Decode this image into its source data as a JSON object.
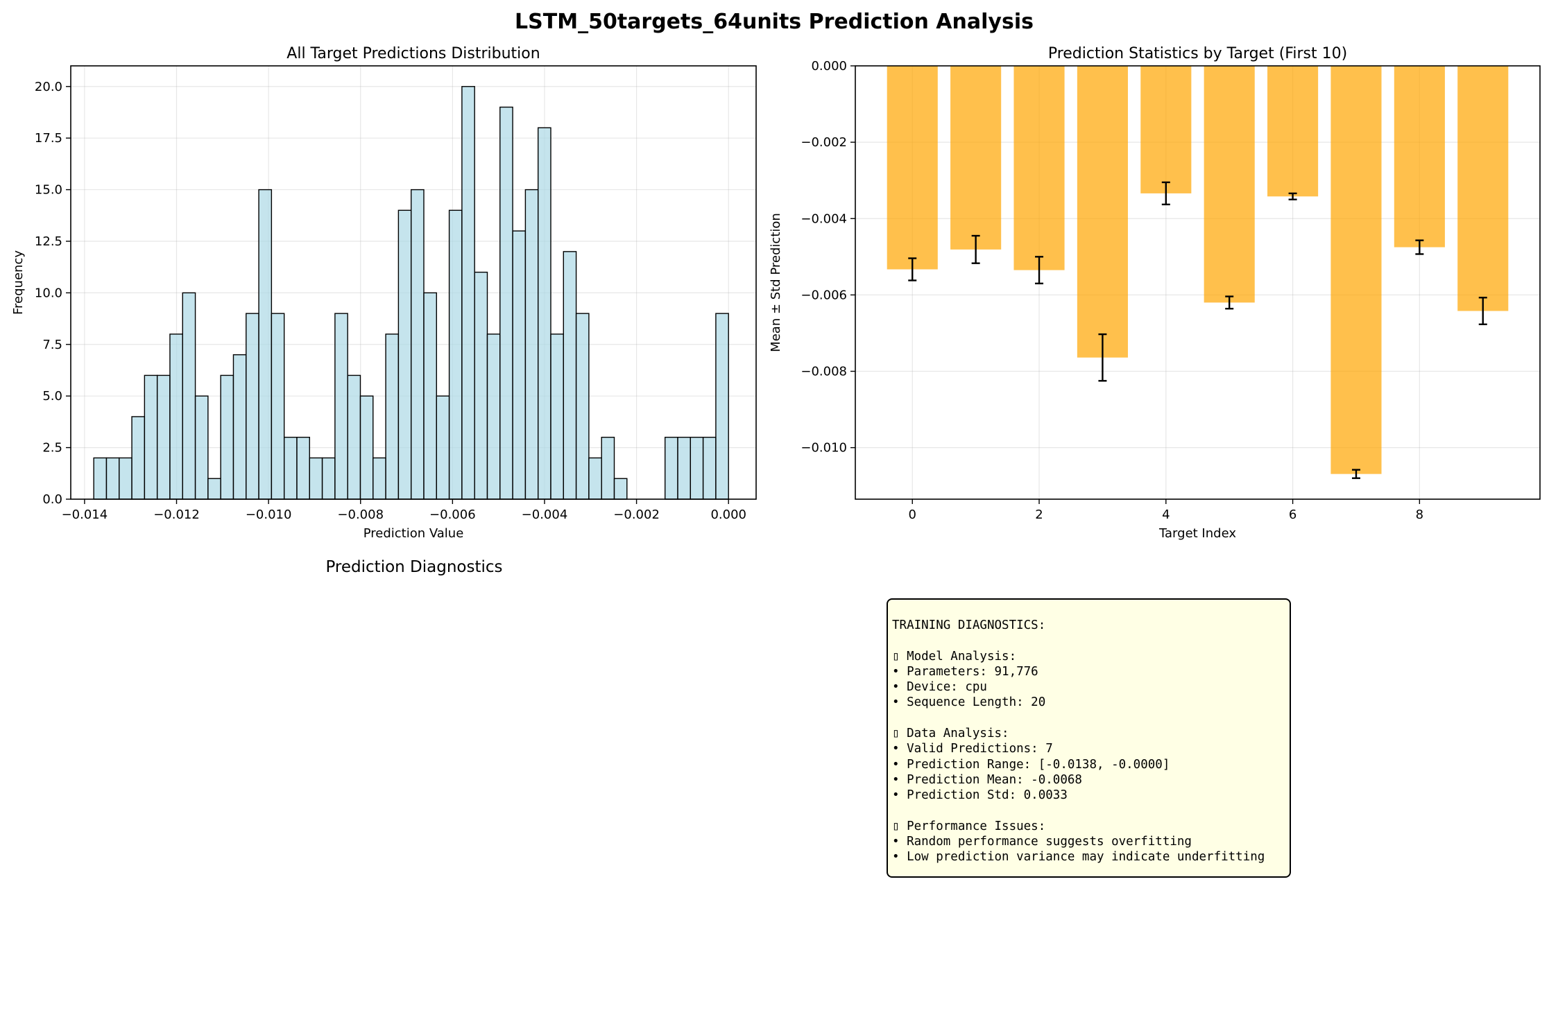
{
  "figure": {
    "title": "LSTM_50targets_64units Prediction Analysis",
    "diagnostics_panel_title": "Prediction Diagnostics"
  },
  "chart_data": [
    {
      "type": "bar",
      "subtype": "histogram",
      "title": "All Target Predictions Distribution",
      "xlabel": "Prediction Value",
      "ylabel": "Frequency",
      "xlim": [
        -0.0143,
        0.0006
      ],
      "ylim": [
        0,
        21
      ],
      "xticks": [
        -0.014,
        -0.012,
        -0.01,
        -0.008,
        -0.006,
        -0.004,
        -0.002,
        0.0
      ],
      "xtick_labels": [
        "−0.014",
        "−0.012",
        "−0.010",
        "−0.008",
        "−0.006",
        "−0.004",
        "−0.002",
        "0.000"
      ],
      "yticks": [
        0.0,
        2.5,
        5.0,
        7.5,
        10.0,
        12.5,
        15.0,
        17.5,
        20.0
      ],
      "ytick_labels": [
        "0.0",
        "2.5",
        "5.0",
        "7.5",
        "10.0",
        "12.5",
        "15.0",
        "17.5",
        "20.0"
      ],
      "grid": true,
      "bin_start": -0.0138,
      "bin_width": 0.000276,
      "counts": [
        2,
        2,
        2,
        4,
        6,
        6,
        8,
        10,
        5,
        1,
        6,
        7,
        9,
        15,
        9,
        3,
        3,
        2,
        2,
        9,
        6,
        5,
        2,
        8,
        14,
        15,
        10,
        5,
        14,
        20,
        11,
        8,
        19,
        13,
        15,
        18,
        8,
        12,
        9,
        2,
        3,
        1,
        0,
        0,
        0,
        3,
        3,
        3,
        3,
        9
      ],
      "bar_color": "#add8e6",
      "edge_color": "#000000"
    },
    {
      "type": "bar",
      "title": "Prediction Statistics by Target (First 10)",
      "xlabel": "Target Index",
      "ylabel": "Mean ± Std Prediction",
      "xlim": [
        -0.9,
        9.9
      ],
      "ylim": [
        -0.01135,
        0.0
      ],
      "xticks": [
        0,
        2,
        4,
        6,
        8
      ],
      "xtick_labels": [
        "0",
        "2",
        "4",
        "6",
        "8"
      ],
      "yticks": [
        0.0,
        -0.002,
        -0.004,
        -0.006,
        -0.008,
        -0.01
      ],
      "ytick_labels": [
        "0.000",
        "−0.002",
        "−0.004",
        "−0.006",
        "−0.008",
        "−0.010"
      ],
      "grid": true,
      "categories": [
        0,
        1,
        2,
        3,
        4,
        5,
        6,
        7,
        8,
        9
      ],
      "values": [
        -0.00533,
        -0.00481,
        -0.00535,
        -0.00764,
        -0.00334,
        -0.0062,
        -0.00342,
        -0.01069,
        -0.00475,
        -0.00642
      ],
      "errors": [
        0.00029,
        0.00036,
        0.00035,
        0.00061,
        0.00029,
        0.00016,
        8e-05,
        0.00011,
        0.00018,
        0.00035
      ],
      "bar_color": "#ffa500"
    }
  ],
  "diagnostics": {
    "header": "TRAINING DIAGNOSTICS:",
    "model_title": "▯ Model Analysis:",
    "model_lines": [
      "• Parameters: 91,776",
      "• Device: cpu",
      "• Sequence Length: 20"
    ],
    "data_title": "▯ Data Analysis:",
    "data_lines": [
      "• Valid Predictions: 7",
      "• Prediction Range: [-0.0138, -0.0000]",
      "• Prediction Mean: -0.0068",
      "• Prediction Std: 0.0033"
    ],
    "perf_title": "▯ Performance Issues:",
    "perf_lines": [
      "• Random performance suggests overfitting",
      "• Low prediction variance may indicate underfitting"
    ]
  }
}
